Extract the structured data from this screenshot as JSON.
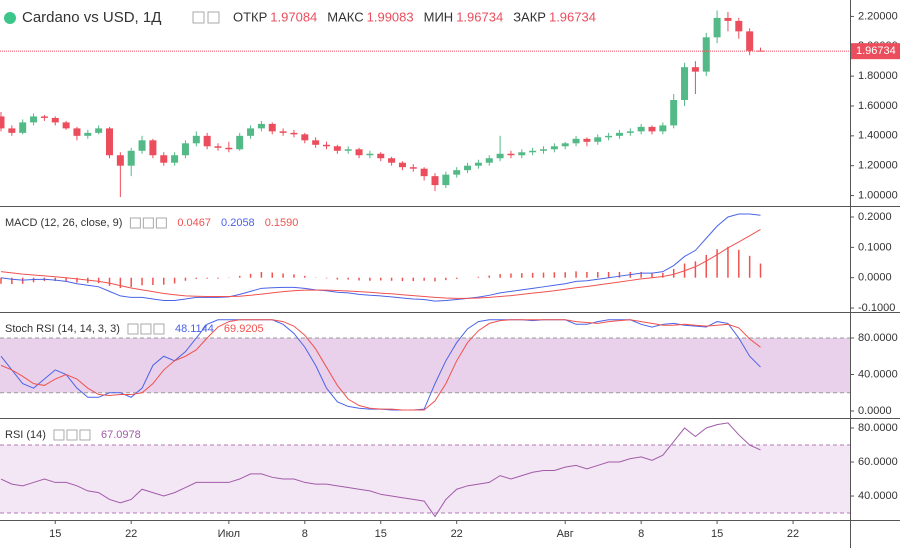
{
  "chart_data": [
    {
      "type": "candlestick",
      "title": "Cardano vs USD, 1Д",
      "ohlc_names": [
        "ОТКР",
        "МАКС",
        "МИН",
        "ЗАКР"
      ],
      "up_color": "#53b987",
      "down_color": "#eb4d5c",
      "open": [
        1.53,
        1.45,
        1.42,
        1.49,
        1.53,
        1.52,
        1.49,
        1.45,
        1.4,
        1.42,
        1.45,
        1.27,
        1.2,
        1.3,
        1.37,
        1.27,
        1.22,
        1.27,
        1.35,
        1.4,
        1.33,
        1.32,
        1.31,
        1.4,
        1.45,
        1.48,
        1.43,
        1.42,
        1.41,
        1.37,
        1.34,
        1.33,
        1.3,
        1.31,
        1.27,
        1.28,
        1.25,
        1.22,
        1.19,
        1.18,
        1.13,
        1.07,
        1.14,
        1.17,
        1.2,
        1.22,
        1.25,
        1.28,
        1.27,
        1.29,
        1.3,
        1.31,
        1.33,
        1.35,
        1.38,
        1.36,
        1.39,
        1.4,
        1.42,
        1.43,
        1.46,
        1.43,
        1.47,
        1.64,
        1.86,
        1.83,
        2.06,
        2.19,
        2.17,
        2.1,
        1.97084
      ],
      "high": [
        1.56,
        1.47,
        1.51,
        1.55,
        1.54,
        1.53,
        1.5,
        1.46,
        1.44,
        1.47,
        1.46,
        1.29,
        1.32,
        1.4,
        1.38,
        1.29,
        1.29,
        1.37,
        1.43,
        1.42,
        1.35,
        1.36,
        1.42,
        1.47,
        1.5,
        1.49,
        1.45,
        1.44,
        1.42,
        1.39,
        1.36,
        1.34,
        1.33,
        1.32,
        1.3,
        1.29,
        1.26,
        1.23,
        1.21,
        1.19,
        1.15,
        1.16,
        1.19,
        1.22,
        1.24,
        1.27,
        1.4,
        1.3,
        1.31,
        1.32,
        1.33,
        1.35,
        1.36,
        1.4,
        1.39,
        1.41,
        1.42,
        1.44,
        1.45,
        1.48,
        1.47,
        1.49,
        1.68,
        1.89,
        1.9,
        2.09,
        2.24,
        2.23,
        2.19,
        2.12,
        1.99083
      ],
      "low": [
        1.43,
        1.4,
        1.41,
        1.47,
        1.5,
        1.47,
        1.44,
        1.37,
        1.38,
        1.41,
        1.25,
        0.99,
        1.13,
        1.28,
        1.25,
        1.2,
        1.2,
        1.25,
        1.33,
        1.31,
        1.3,
        1.29,
        1.3,
        1.38,
        1.43,
        1.41,
        1.4,
        1.39,
        1.35,
        1.32,
        1.31,
        1.28,
        1.28,
        1.25,
        1.25,
        1.23,
        1.2,
        1.17,
        1.16,
        1.1,
        1.03,
        1.05,
        1.12,
        1.15,
        1.18,
        1.2,
        1.23,
        1.25,
        1.25,
        1.27,
        1.28,
        1.29,
        1.31,
        1.33,
        1.33,
        1.34,
        1.37,
        1.38,
        1.4,
        1.41,
        1.41,
        1.41,
        1.45,
        1.6,
        1.68,
        1.8,
        2.02,
        2.1,
        2.05,
        1.94,
        1.96734
      ],
      "close": [
        1.45,
        1.42,
        1.49,
        1.53,
        1.52,
        1.49,
        1.45,
        1.4,
        1.42,
        1.45,
        1.27,
        1.2,
        1.3,
        1.37,
        1.27,
        1.22,
        1.27,
        1.35,
        1.4,
        1.33,
        1.32,
        1.31,
        1.4,
        1.45,
        1.48,
        1.43,
        1.42,
        1.41,
        1.37,
        1.34,
        1.33,
        1.3,
        1.31,
        1.27,
        1.28,
        1.25,
        1.22,
        1.19,
        1.18,
        1.13,
        1.07,
        1.14,
        1.17,
        1.2,
        1.22,
        1.25,
        1.28,
        1.27,
        1.29,
        1.3,
        1.31,
        1.33,
        1.35,
        1.38,
        1.36,
        1.39,
        1.4,
        1.42,
        1.43,
        1.46,
        1.43,
        1.47,
        1.64,
        1.86,
        1.83,
        2.06,
        2.19,
        2.17,
        2.1,
        1.97,
        1.96734
      ],
      "ylim": [
        0.93,
        2.31
      ],
      "yticks": [
        {
          "value": 2.2,
          "label": "2.20000"
        },
        {
          "value": 2.0,
          "label": "2.00000"
        },
        {
          "value": 1.8,
          "label": "1.80000"
        },
        {
          "value": 1.6,
          "label": "1.60000"
        },
        {
          "value": 1.4,
          "label": "1.40000"
        },
        {
          "value": 1.2,
          "label": "1.20000"
        },
        {
          "value": 1.0,
          "label": "1.00000"
        }
      ]
    },
    {
      "type": "indicator",
      "title": "MACD (12, 26, close, 9)",
      "series": [
        {
          "style": "histogram",
          "color": "#ef5350",
          "values": [
            -0.02,
            -0.021,
            -0.02,
            -0.015,
            -0.011,
            -0.011,
            -0.012,
            -0.016,
            -0.017,
            -0.018,
            -0.027,
            -0.034,
            -0.031,
            -0.025,
            -0.024,
            -0.023,
            -0.019,
            -0.01,
            -0.004,
            -0.003,
            -0.003,
            -0.001,
            0.006,
            0.013,
            0.019,
            0.017,
            0.014,
            0.011,
            0.006,
            0.001,
            -0.002,
            -0.006,
            -0.006,
            -0.009,
            -0.01,
            -0.009,
            -0.01,
            -0.011,
            -0.011,
            -0.01,
            -0.012,
            -0.008,
            -0.004,
            0,
            0.003,
            0.007,
            0.012,
            0.014,
            0.015,
            0.016,
            0.017,
            0.018,
            0.018,
            0.021,
            0.019,
            0.019,
            0.019,
            0.019,
            0.019,
            0.019,
            0.015,
            0.016,
            0.029,
            0.047,
            0.054,
            0.075,
            0.094,
            0.102,
            0.092,
            0.072,
            0.0467
          ]
        },
        {
          "style": "line",
          "color": "#4a63e8",
          "values": [
            0.0,
            -0.005,
            -0.008,
            -0.006,
            -0.005,
            -0.008,
            -0.012,
            -0.02,
            -0.025,
            -0.03,
            -0.045,
            -0.06,
            -0.065,
            -0.065,
            -0.07,
            -0.075,
            -0.075,
            -0.07,
            -0.065,
            -0.065,
            -0.065,
            -0.063,
            -0.055,
            -0.045,
            -0.035,
            -0.033,
            -0.032,
            -0.032,
            -0.035,
            -0.04,
            -0.043,
            -0.048,
            -0.05,
            -0.055,
            -0.058,
            -0.06,
            -0.063,
            -0.067,
            -0.07,
            -0.072,
            -0.077,
            -0.075,
            -0.072,
            -0.068,
            -0.064,
            -0.058,
            -0.05,
            -0.045,
            -0.04,
            -0.035,
            -0.03,
            -0.025,
            -0.02,
            -0.012,
            -0.01,
            -0.005,
            0.0,
            0.005,
            0.01,
            0.015,
            0.015,
            0.02,
            0.04,
            0.07,
            0.09,
            0.13,
            0.17,
            0.2,
            0.21,
            0.21,
            0.2058
          ]
        },
        {
          "style": "line",
          "color": "#f0524f",
          "values": [
            0.02,
            0.016,
            0.012,
            0.009,
            0.006,
            0.003,
            0,
            -0.004,
            -0.008,
            -0.012,
            -0.018,
            -0.026,
            -0.034,
            -0.04,
            -0.046,
            -0.052,
            -0.056,
            -0.06,
            -0.061,
            -0.062,
            -0.062,
            -0.062,
            -0.061,
            -0.058,
            -0.054,
            -0.05,
            -0.046,
            -0.043,
            -0.041,
            -0.041,
            -0.041,
            -0.042,
            -0.044,
            -0.046,
            -0.048,
            -0.051,
            -0.053,
            -0.056,
            -0.059,
            -0.062,
            -0.065,
            -0.067,
            -0.068,
            -0.068,
            -0.067,
            -0.065,
            -0.062,
            -0.059,
            -0.055,
            -0.051,
            -0.047,
            -0.043,
            -0.038,
            -0.033,
            -0.029,
            -0.024,
            -0.019,
            -0.014,
            -0.009,
            -0.004,
            0,
            0.004,
            0.011,
            0.023,
            0.036,
            0.055,
            0.076,
            0.098,
            0.118,
            0.138,
            0.159
          ],
          "value_labels": [
            null,
            null,
            null,
            null,
            null,
            null,
            null,
            null,
            null,
            null,
            null,
            null,
            null,
            null,
            null,
            null,
            null,
            null,
            null,
            null,
            null,
            null,
            null,
            null,
            null,
            null,
            null,
            null,
            null,
            null,
            null,
            null,
            null,
            null,
            null,
            null,
            null,
            null,
            null,
            null,
            null,
            null,
            null,
            null,
            null,
            null,
            null,
            null,
            null,
            null,
            null,
            null,
            null,
            null,
            null,
            null,
            null,
            null,
            null,
            null,
            null,
            null,
            null,
            null,
            null,
            null,
            null,
            null,
            null,
            null,
            "0.1590"
          ]
        }
      ],
      "ylim": [
        -0.113,
        0.233
      ],
      "yticks": [
        {
          "value": 0.2,
          "label": "0.2000"
        },
        {
          "value": 0.1,
          "label": "0.1000"
        },
        {
          "value": 0,
          "label": "0.0000"
        },
        {
          "value": -0.1,
          "label": "-0.1000"
        }
      ]
    },
    {
      "type": "indicator",
      "title": "Stoch RSI (14, 14, 3, 3)",
      "band": [
        20,
        80
      ],
      "band_color": "#e3c6e6",
      "band_line_color": "#999999",
      "series": [
        {
          "style": "line",
          "color": "#4a63e8",
          "values": [
            60,
            45,
            30,
            25,
            35,
            45,
            40,
            25,
            15,
            15,
            20,
            20,
            15,
            25,
            50,
            60,
            55,
            65,
            80,
            95,
            100,
            100,
            100,
            100,
            100,
            100,
            95,
            85,
            70,
            50,
            25,
            10,
            5,
            3,
            2,
            2,
            1,
            1,
            1,
            2,
            30,
            55,
            75,
            90,
            98,
            100,
            100,
            100,
            100,
            99,
            100,
            100,
            100,
            95,
            95,
            98,
            100,
            100,
            100,
            95,
            92,
            95,
            96,
            94,
            93,
            92,
            98,
            96,
            80,
            60,
            48.1144
          ]
        },
        {
          "style": "line",
          "color": "#f0524f",
          "values": [
            50,
            45,
            38,
            30,
            28,
            35,
            40,
            35,
            25,
            18,
            17,
            18,
            18,
            20,
            30,
            45,
            55,
            60,
            67,
            80,
            92,
            98,
            100,
            100,
            100,
            100,
            98,
            93,
            83,
            68,
            48,
            28,
            13,
            6,
            3,
            2,
            2,
            1,
            1,
            1,
            11,
            30,
            55,
            75,
            88,
            96,
            99,
            100,
            100,
            100,
            100,
            100,
            100,
            98,
            97,
            96,
            98,
            99,
            100,
            98,
            96,
            94,
            94,
            95,
            94,
            93,
            94,
            95,
            91,
            79,
            69.9205
          ]
        }
      ],
      "ylim": [
        -7.7,
        107.4
      ],
      "yticks": [
        {
          "value": 80,
          "label": "80.0000"
        },
        {
          "value": 40,
          "label": "40.0000"
        },
        {
          "value": 0,
          "label": "0.0000"
        }
      ]
    },
    {
      "type": "indicator",
      "title": "RSI (14)",
      "band": [
        30,
        70
      ],
      "band_color": "#f1e1f2",
      "band_line_color": "#b07ab5",
      "series": [
        {
          "style": "line",
          "color": "#a05ba8",
          "values": [
            50,
            47,
            46,
            48,
            50,
            48,
            48,
            46,
            43,
            42,
            38,
            36,
            38,
            44,
            42,
            40,
            42,
            45,
            48,
            48,
            48,
            48,
            50,
            53,
            53,
            51,
            50,
            50,
            48,
            47,
            47,
            46,
            45,
            44,
            43,
            41,
            40,
            39,
            38,
            37,
            28,
            38,
            44,
            46,
            47,
            48,
            52,
            50,
            52,
            54,
            55,
            55,
            57,
            58,
            56,
            58,
            60,
            60,
            62,
            63,
            61,
            64,
            72,
            80,
            75,
            80,
            82,
            83,
            76,
            70,
            67.0978
          ]
        }
      ],
      "ylim": [
        25.9,
        85.3
      ],
      "yticks": [
        {
          "value": 80,
          "label": "80.0000"
        },
        {
          "value": 60,
          "label": "60.0000"
        },
        {
          "value": 40,
          "label": "40.0000"
        }
      ],
      "xticks": [
        {
          "value": 5,
          "label": "15"
        },
        {
          "value": 12,
          "label": "22"
        },
        {
          "value": 21,
          "label": "Июл"
        },
        {
          "value": 28,
          "label": "8"
        },
        {
          "value": 35,
          "label": "15"
        },
        {
          "value": 42,
          "label": "22"
        },
        {
          "value": 52,
          "label": "Авг"
        },
        {
          "value": 59,
          "label": "8"
        },
        {
          "value": 66,
          "label": "15"
        },
        {
          "value": 73,
          "label": "22"
        }
      ]
    }
  ]
}
